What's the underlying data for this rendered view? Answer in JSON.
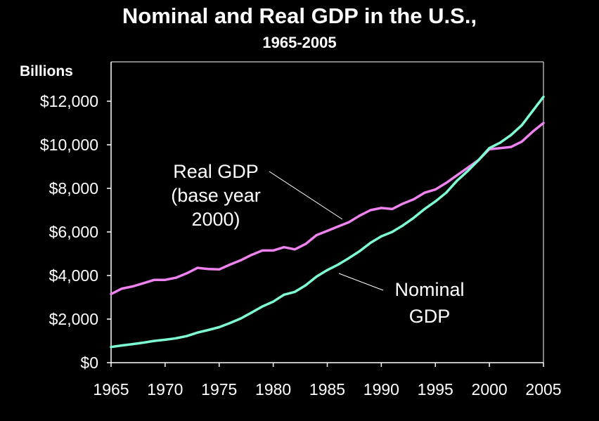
{
  "chart_data": {
    "type": "line",
    "title": "Nominal and Real GDP in the U.S.,",
    "subtitle": "1965-2005",
    "ylabel": "Billions",
    "xlabel": "",
    "xlim": [
      1965,
      2005
    ],
    "ylim": [
      0,
      12000
    ],
    "x_ticks": [
      1965,
      1970,
      1975,
      1980,
      1985,
      1990,
      1995,
      2000,
      2005
    ],
    "y_ticks": [
      {
        "value": 0,
        "label": "$0"
      },
      {
        "value": 2000,
        "label": "$2,000"
      },
      {
        "value": 4000,
        "label": "$4,000"
      },
      {
        "value": 6000,
        "label": "$6,000"
      },
      {
        "value": 8000,
        "label": "$8,000"
      },
      {
        "value": 10000,
        "label": "$10,000"
      },
      {
        "value": 12000,
        "label": "$12,000"
      }
    ],
    "grid": false,
    "legend": "none",
    "x": [
      1965,
      1966,
      1967,
      1968,
      1969,
      1970,
      1971,
      1972,
      1973,
      1974,
      1975,
      1976,
      1977,
      1978,
      1979,
      1980,
      1981,
      1982,
      1983,
      1984,
      1985,
      1986,
      1987,
      1988,
      1989,
      1990,
      1991,
      1992,
      1993,
      1994,
      1995,
      1996,
      1997,
      1998,
      1999,
      2000,
      2001,
      2002,
      2003,
      2004,
      2005
    ],
    "series": [
      {
        "name": "",
        "color": "#ee82ee",
        "values": [
          3150,
          3400,
          3500,
          3650,
          3800,
          3800,
          3900,
          4100,
          4350,
          4300,
          4280,
          4500,
          4700,
          4950,
          5150,
          5150,
          5300,
          5200,
          5450,
          5850,
          6050,
          6250,
          6450,
          6750,
          7000,
          7100,
          7050,
          7300,
          7500,
          7800,
          7950,
          8250,
          8600,
          8950,
          9300,
          9800,
          9850,
          9900,
          10150,
          10600,
          11000
        ]
      },
      {
        "name": "",
        "color": "#7fffd4",
        "values": [
          720,
          790,
          850,
          920,
          1000,
          1050,
          1120,
          1220,
          1380,
          1500,
          1630,
          1820,
          2030,
          2300,
          2580,
          2800,
          3120,
          3250,
          3550,
          3950,
          4250,
          4500,
          4800,
          5120,
          5500,
          5800,
          6000,
          6300,
          6650,
          7050,
          7400,
          7800,
          8350,
          8800,
          9300,
          9850,
          10100,
          10450,
          10900,
          11550,
          12200
        ]
      }
    ],
    "annotations": {
      "real_gdp": [
        "Real GDP",
        "(base year",
        "2000)"
      ],
      "nominal_gdp": [
        "Nominal",
        "GDP"
      ]
    }
  }
}
